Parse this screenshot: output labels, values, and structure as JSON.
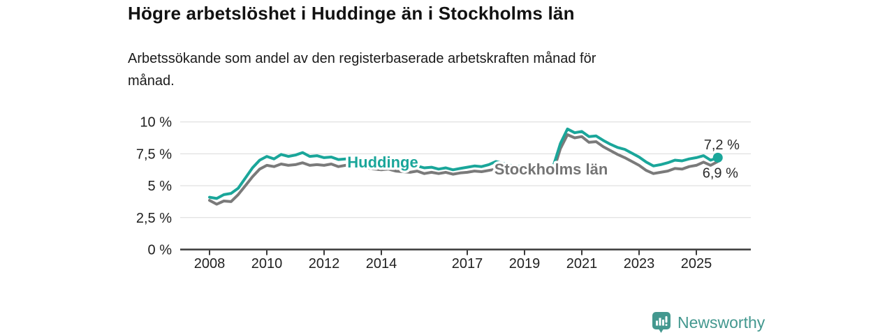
{
  "header": {
    "title": "Högre arbetslöshet i Huddinge än i Stockholms län",
    "subtitle_lines": [
      "Arbetssökande som andel av den registerbaserade arbetskraften månad för",
      "månad."
    ]
  },
  "footer": {
    "brand": "Newsworthy"
  },
  "colors": {
    "huddinge_teal": "#1aa69a",
    "stockholm_gray": "#7a7a7a",
    "label_gray": "#757575",
    "axis": "#3a3a3a",
    "grid": "#d9d9d9",
    "tick_text": "#1f1f1f",
    "annotation_text": "#2b2b2b",
    "brand_teal": "#43988f"
  },
  "chart_data": {
    "type": "line",
    "title": "Högre arbetslöshet i Huddinge än i Stockholms län",
    "ylabel": "Arbetssökande som andel av den registerbaserade arbetskraften",
    "x_start": 2008.0,
    "x_step": 0.25,
    "xlim": [
      2007.0,
      2026.9
    ],
    "ylim": [
      0,
      10
    ],
    "grid": "horizontal",
    "legend_position": "inline",
    "yticks": [
      {
        "value": 0,
        "label": "0 %"
      },
      {
        "value": 2.5,
        "label": "2,5 %"
      },
      {
        "value": 5,
        "label": "5 %"
      },
      {
        "value": 7.5,
        "label": "7,5 %"
      },
      {
        "value": 10,
        "label": "10 %"
      }
    ],
    "xticks": [
      {
        "value": 2008,
        "label": "2008"
      },
      {
        "value": 2010,
        "label": "2010"
      },
      {
        "value": 2012,
        "label": "2012"
      },
      {
        "value": 2014,
        "label": "2014"
      },
      {
        "value": 2017,
        "label": "2017"
      },
      {
        "value": 2019,
        "label": "2019"
      },
      {
        "value": 2021,
        "label": "2021"
      },
      {
        "value": 2023,
        "label": "2023"
      },
      {
        "value": 2025,
        "label": "2025"
      }
    ],
    "series": [
      {
        "name": "Huddinge",
        "color": "#1aa69a",
        "end_label": "7,2 %",
        "end_value": 7.2,
        "end_dot": true,
        "end_label_position": "above",
        "inline_label": {
          "x": 548,
          "y": 240
        },
        "values": [
          4.1,
          4.0,
          4.3,
          4.4,
          4.8,
          5.6,
          6.4,
          7.0,
          7.3,
          7.1,
          7.45,
          7.3,
          7.4,
          7.6,
          7.3,
          7.35,
          7.2,
          7.25,
          7.05,
          7.1,
          7.0,
          7.05,
          6.9,
          6.8,
          6.7,
          6.75,
          6.6,
          6.55,
          6.5,
          6.55,
          6.4,
          6.45,
          6.3,
          6.4,
          6.25,
          6.35,
          6.45,
          6.55,
          6.5,
          6.65,
          6.9,
          6.75,
          6.6,
          6.55,
          6.45,
          6.5,
          6.35,
          6.4,
          6.5,
          8.3,
          9.45,
          9.15,
          9.25,
          8.85,
          8.9,
          8.55,
          8.25,
          8.0,
          7.85,
          7.55,
          7.25,
          6.85,
          6.55,
          6.65,
          6.8,
          7.0,
          6.95,
          7.1,
          7.2,
          7.35,
          7.0,
          7.2
        ]
      },
      {
        "name": "Stockholms län",
        "color": "#7a7a7a",
        "label_color": "#757575",
        "end_label": "6,9 %",
        "end_value": 6.9,
        "end_dot": false,
        "end_label_position": "below",
        "inline_label": {
          "x": 789,
          "y": 250
        },
        "values": [
          3.85,
          3.55,
          3.8,
          3.75,
          4.3,
          5.0,
          5.7,
          6.3,
          6.6,
          6.5,
          6.7,
          6.6,
          6.65,
          6.8,
          6.6,
          6.65,
          6.6,
          6.7,
          6.5,
          6.6,
          6.5,
          6.55,
          6.4,
          6.3,
          6.25,
          6.3,
          6.15,
          6.1,
          6.05,
          6.15,
          5.95,
          6.05,
          5.95,
          6.05,
          5.9,
          6.0,
          6.05,
          6.15,
          6.1,
          6.2,
          6.3,
          6.2,
          6.1,
          6.05,
          5.95,
          6.05,
          5.9,
          6.0,
          6.1,
          7.9,
          9.0,
          8.75,
          8.85,
          8.4,
          8.45,
          8.05,
          7.75,
          7.45,
          7.2,
          6.9,
          6.6,
          6.2,
          5.95,
          6.05,
          6.15,
          6.35,
          6.3,
          6.5,
          6.6,
          6.85,
          6.6,
          6.9
        ]
      }
    ]
  }
}
